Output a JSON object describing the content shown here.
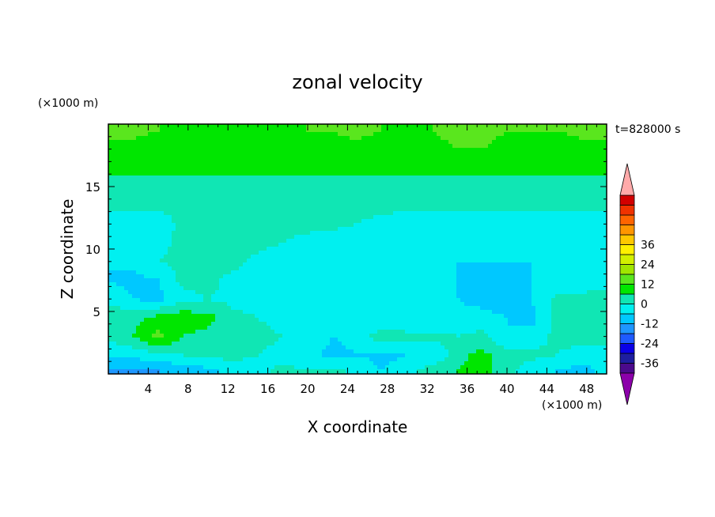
{
  "chart_data": {
    "type": "heatmap",
    "title": "zonal velocity",
    "xlabel": "X coordinate",
    "ylabel": "Z coordinate",
    "x_unit": "(×1000 m)",
    "y_unit": "(×1000 m)",
    "time_label": "t=828000 s",
    "xlim": [
      0,
      50
    ],
    "ylim": [
      0,
      20
    ],
    "x_ticks": [
      "4",
      "8",
      "12",
      "16",
      "20",
      "24",
      "28",
      "32",
      "36",
      "40",
      "44",
      "48"
    ],
    "y_ticks": [
      "5",
      "10",
      "15"
    ],
    "colorbar": {
      "tick_labels": [
        "36",
        "24",
        "12",
        "0",
        "-12",
        "-24",
        "-36"
      ],
      "level_min": -42,
      "level_step": 6,
      "colors": [
        "#4b0a8c",
        "#1e1ea0",
        "#0a00e6",
        "#1e5aff",
        "#1e96ff",
        "#00c8ff",
        "#00f0f0",
        "#10e6b4",
        "#00e600",
        "#5ae61e",
        "#a0e600",
        "#d2f000",
        "#fff000",
        "#ffc800",
        "#ff9600",
        "#ff6400",
        "#f03200",
        "#d20000"
      ],
      "under_color": "#8c00aa",
      "over_color": "#ffaaaa"
    },
    "field_description_values": {
      "z_rows": [
        0.25,
        1.5,
        3.0,
        4.5,
        6.0,
        7.5,
        9.0,
        10.5,
        12.0,
        13.5,
        15.0,
        16.5,
        18.0,
        19.5
      ],
      "values": [
        [
          -13,
          -14,
          -12,
          -10,
          -8,
          -4,
          -2,
          2,
          0,
          2,
          -2,
          -6,
          -2,
          4,
          6,
          8,
          2,
          -4,
          -6,
          -8,
          -4
        ],
        [
          -6,
          -4,
          -2,
          0,
          2,
          2,
          0,
          -2,
          -4,
          -8,
          -6,
          -8,
          -6,
          -6,
          4,
          8,
          2,
          2,
          0,
          -4,
          -2
        ],
        [
          2,
          6,
          14,
          6,
          4,
          2,
          2,
          0,
          -2,
          -6,
          -4,
          4,
          2,
          2,
          0,
          2,
          -6,
          -4,
          2,
          4,
          2
        ],
        [
          4,
          4,
          8,
          10,
          8,
          2,
          0,
          -2,
          -4,
          -2,
          -4,
          -6,
          -6,
          -6,
          -4,
          -4,
          -6,
          -8,
          2,
          2,
          2
        ],
        [
          -2,
          -6,
          -8,
          -2,
          0,
          -2,
          -4,
          -4,
          -6,
          -6,
          -6,
          -6,
          -6,
          -6,
          -6,
          -8,
          -10,
          -6,
          2,
          2,
          2
        ],
        [
          -6,
          -8,
          -6,
          2,
          2,
          -2,
          0,
          -4,
          -6,
          -6,
          -6,
          -6,
          -6,
          -6,
          -6,
          -8,
          -8,
          -6,
          -6,
          -4,
          -2
        ],
        [
          -6,
          -4,
          0,
          2,
          2,
          2,
          -2,
          -4,
          -6,
          -6,
          -6,
          -6,
          -6,
          -6,
          -6,
          -6,
          -6,
          -6,
          -6,
          -6,
          -6
        ],
        [
          -6,
          -4,
          -2,
          2,
          2,
          2,
          2,
          0,
          -2,
          -4,
          -6,
          -6,
          -6,
          -6,
          -6,
          -6,
          -6,
          -6,
          -6,
          -6,
          -6
        ],
        [
          -6,
          -6,
          -4,
          2,
          2,
          2,
          2,
          2,
          2,
          2,
          0,
          -2,
          -4,
          -6,
          -6,
          -6,
          -6,
          -6,
          -6,
          -6,
          -6
        ],
        [
          2,
          2,
          2,
          2,
          2,
          2,
          2,
          4,
          4,
          4,
          2,
          2,
          2,
          2,
          2,
          2,
          2,
          2,
          2,
          2,
          2
        ],
        [
          4,
          4,
          4,
          4,
          4,
          4,
          4,
          4,
          4,
          4,
          4,
          4,
          4,
          4,
          4,
          4,
          4,
          4,
          4,
          4,
          4
        ],
        [
          8,
          8,
          8,
          8,
          8,
          8,
          8,
          8,
          8,
          8,
          8,
          8,
          8,
          8,
          8,
          8,
          8,
          8,
          8,
          8,
          8
        ],
        [
          10,
          10,
          8,
          8,
          8,
          8,
          8,
          8,
          8,
          10,
          10,
          8,
          8,
          10,
          12,
          12,
          10,
          8,
          8,
          10,
          10
        ],
        [
          14,
          14,
          12,
          10,
          10,
          10,
          10,
          10,
          12,
          12,
          14,
          12,
          10,
          12,
          14,
          14,
          12,
          12,
          12,
          14,
          14
        ]
      ]
    }
  }
}
